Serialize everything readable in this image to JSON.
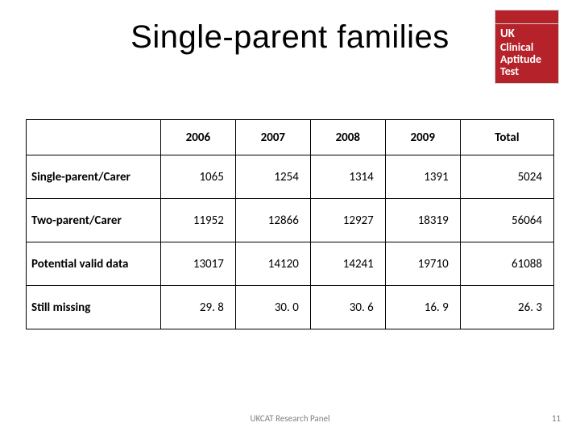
{
  "title": "Single-parent families",
  "logo": {
    "line1": "UK",
    "line2": "Clinical",
    "line3": "Aptitude",
    "line4": "Test",
    "bg_color": "#b5222a",
    "text_color": "#ffffff"
  },
  "table": {
    "type": "table",
    "background_color": "#ffffff",
    "border_color": "#000000",
    "header_fontsize": 15,
    "cell_fontsize": 15,
    "row_header_width": 158,
    "year_col_width": 88,
    "total_col_width": 110,
    "columns": [
      "",
      "2006",
      "2007",
      "2008",
      "2009",
      "Total"
    ],
    "rows": [
      {
        "label": "Single-parent/Carer",
        "values": [
          "1065",
          "1254",
          "1314",
          "1391",
          "5024"
        ]
      },
      {
        "label": "Two-parent/Carer",
        "values": [
          "11952",
          "12866",
          "12927",
          "18319",
          "56064"
        ]
      },
      {
        "label": "Potential valid data",
        "values": [
          "13017",
          "14120",
          "14241",
          "19710",
          "61088"
        ]
      },
      {
        "label": "Still missing",
        "values": [
          "29. 8",
          "30. 0",
          "30. 6",
          "16. 9",
          "26. 3"
        ]
      }
    ]
  },
  "footer": {
    "center": "UKCAT Research Panel",
    "page": "11",
    "color": "#7f7f7f",
    "fontsize": 11
  }
}
